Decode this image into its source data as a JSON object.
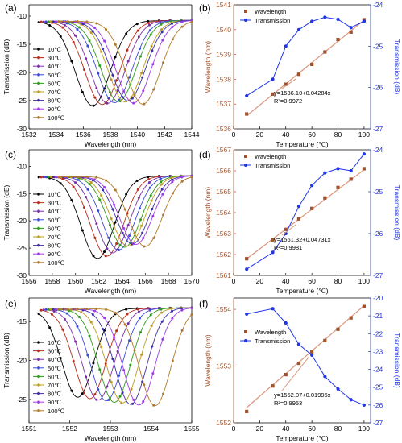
{
  "colors": {
    "wavelength": "#a0522d",
    "transmission": "#1f35e6",
    "fit": "#d9967c",
    "series": [
      "#000000",
      "#b82c1c",
      "#7a2fa6",
      "#3a49d8",
      "#2e9b1a",
      "#bb9b1f",
      "#3c2fa8",
      "#9b3be8",
      "#b07a2a"
    ]
  },
  "chart_data": [
    {
      "id": "a",
      "panel_label": "(a)",
      "type": "line",
      "xlabel": "Wavelength (nm)",
      "ylabel": "Transmission (dB)",
      "xlim": [
        1532,
        1544
      ],
      "ylim": [
        -30,
        -8
      ],
      "xticks": [
        1532,
        1534,
        1536,
        1538,
        1540,
        1542,
        1544
      ],
      "yticks": [
        -10,
        -15,
        -20,
        -25,
        -30
      ],
      "legend": [
        "10℃",
        "30℃",
        "40℃",
        "50℃",
        "60℃",
        "70℃",
        "80℃",
        "90℃",
        "100℃"
      ],
      "legend_pos": "left",
      "dips": [
        1536.7,
        1537.4,
        1537.8,
        1538.3,
        1538.6,
        1539.1,
        1539.3,
        1539.7,
        1540.4
      ],
      "dip_min": [
        -26,
        -25.8,
        -25.6,
        -25.5,
        -25.3,
        -25.4,
        -25.2,
        -25.6,
        -25.8
      ],
      "baseline": -11,
      "dip_width": 1.8
    },
    {
      "id": "b",
      "panel_label": "(b)",
      "type": "line-dual",
      "xlabel": "Temperature (℃)",
      "ylabel": "Wavelength (nm)",
      "y2label": "Transmission (dB)",
      "xlim": [
        0,
        105
      ],
      "ylim": [
        1536,
        1541
      ],
      "y2lim": [
        -27,
        -24
      ],
      "xticks": [
        0,
        20,
        40,
        60,
        80,
        100
      ],
      "yticks": [
        1536,
        1537,
        1538,
        1539,
        1540,
        1541
      ],
      "y2ticks": [
        -24,
        -25,
        -26,
        -27
      ],
      "series": [
        {
          "name": "Wavelength",
          "axis": "left",
          "x": [
            10,
            30,
            40,
            50,
            60,
            70,
            80,
            90,
            100
          ],
          "y": [
            1536.6,
            1537.4,
            1537.8,
            1538.2,
            1538.6,
            1539.1,
            1539.6,
            1539.9,
            1540.4
          ]
        },
        {
          "name": "Transmission",
          "axis": "right",
          "x": [
            10,
            30,
            40,
            50,
            60,
            70,
            80,
            90,
            100
          ],
          "y": [
            -26.2,
            -25.8,
            -25.0,
            -24.6,
            -24.4,
            -24.3,
            -24.35,
            -24.55,
            -24.4
          ]
        }
      ],
      "fit": {
        "intercept": 1536.1,
        "slope": 0.04284
      },
      "annotation": [
        "y=1536.10+0.04284x",
        "R²=0.9972"
      ],
      "legend_pos": "top-left"
    },
    {
      "id": "c",
      "panel_label": "(c)",
      "type": "line",
      "xlabel": "Wavelength (nm)",
      "ylabel": "Transmission (dB)",
      "xlim": [
        1556,
        1570
      ],
      "ylim": [
        -30,
        -7
      ],
      "xticks": [
        1556,
        1558,
        1560,
        1562,
        1564,
        1566,
        1568,
        1570
      ],
      "yticks": [
        -10,
        -15,
        -20,
        -25,
        -30
      ],
      "legend": [
        "10℃",
        "30℃",
        "40℃",
        "50℃",
        "60℃",
        "70℃",
        "80℃",
        "90℃",
        "100℃"
      ],
      "legend_pos": "left",
      "dips": [
        1561.9,
        1562.7,
        1563.2,
        1563.7,
        1564.2,
        1564.5,
        1564.9,
        1565.2,
        1566.0
      ],
      "dip_min": [
        -27,
        -26.6,
        -26.0,
        -25.5,
        -25.0,
        -24.8,
        -24.4,
        -24.5,
        -24.9
      ],
      "baseline": -12,
      "dip_width": 2.0
    },
    {
      "id": "d",
      "panel_label": "(d)",
      "type": "line-dual",
      "xlabel": "Temperature (℃)",
      "ylabel": "Wavelength (nm)",
      "y2label": "Transmission (dB)",
      "xlim": [
        0,
        105
      ],
      "ylim": [
        1561,
        1567
      ],
      "y2lim": [
        -27,
        -24
      ],
      "xticks": [
        0,
        20,
        40,
        60,
        80,
        100
      ],
      "yticks": [
        1561,
        1562,
        1563,
        1564,
        1565,
        1566,
        1567
      ],
      "y2ticks": [
        -24,
        -25,
        -26,
        -27
      ],
      "series": [
        {
          "name": "Wavelength",
          "axis": "left",
          "x": [
            10,
            30,
            40,
            50,
            60,
            70,
            80,
            90,
            100
          ],
          "y": [
            1561.8,
            1562.7,
            1563.2,
            1563.7,
            1564.2,
            1564.7,
            1565.2,
            1565.6,
            1566.1
          ]
        },
        {
          "name": "Transmission",
          "axis": "right",
          "x": [
            10,
            30,
            40,
            50,
            60,
            70,
            80,
            90,
            100
          ],
          "y": [
            -26.85,
            -26.45,
            -26.0,
            -25.35,
            -24.85,
            -24.55,
            -24.45,
            -24.5,
            -24.1
          ]
        }
      ],
      "fit": {
        "intercept": 1561.32,
        "slope": 0.04731
      },
      "annotation": [
        "y=1561.32+0.04731x",
        "R²=0.9981"
      ],
      "legend_pos": "top-left"
    },
    {
      "id": "e",
      "panel_label": "(e)",
      "type": "line",
      "xlabel": "Wavelength (nm)",
      "ylabel": "Transmission (dB)",
      "xlim": [
        1551,
        1555
      ],
      "ylim": [
        -28,
        -12
      ],
      "xticks": [
        1551,
        1552,
        1553,
        1554,
        1555
      ],
      "yticks": [
        -15,
        -20,
        -25
      ],
      "legend": [
        "10℃",
        "30℃",
        "40℃",
        "50℃",
        "60℃",
        "70℃",
        "80℃",
        "90℃",
        "100℃"
      ],
      "legend_pos": "left",
      "dips": [
        1552.2,
        1552.5,
        1552.7,
        1552.9,
        1553.1,
        1553.3,
        1553.5,
        1553.7,
        1554.1
      ],
      "dip_min": [
        -24.8,
        -25.0,
        -25.2,
        -25.3,
        -25.5,
        -25.6,
        -25.8,
        -25.9,
        -26.0
      ],
      "baseline": -13.5,
      "dip_width": 0.55
    },
    {
      "id": "f",
      "panel_label": "(f)",
      "type": "line-dual",
      "xlabel": "Temperature (℃)",
      "ylabel": "Wavelength (nm)",
      "y2label": "Transmission (dB)",
      "xlim": [
        0,
        105
      ],
      "ylim": [
        1552,
        1554.2
      ],
      "y2lim": [
        -27,
        -20
      ],
      "xticks": [
        0,
        20,
        40,
        60,
        80,
        100
      ],
      "yticks": [
        1552,
        1553,
        1554
      ],
      "y2ticks": [
        -20,
        -21,
        -22,
        -23,
        -24,
        -25,
        -26,
        -27
      ],
      "series": [
        {
          "name": "Wavelength",
          "axis": "left",
          "x": [
            10,
            30,
            40,
            50,
            60,
            70,
            80,
            90,
            100
          ],
          "y": [
            1552.2,
            1552.65,
            1552.85,
            1553.05,
            1553.25,
            1553.45,
            1553.65,
            1553.85,
            1554.05
          ]
        },
        {
          "name": "Transmission",
          "axis": "right",
          "x": [
            10,
            30,
            40,
            50,
            60,
            70,
            80,
            90,
            100
          ],
          "y": [
            -20.9,
            -20.6,
            -21.4,
            -22.6,
            -23.2,
            -24.4,
            -25.1,
            -25.7,
            -26.0
          ]
        }
      ],
      "fit": {
        "intercept": 1552.07,
        "slope": 0.01996
      },
      "annotation": [
        "y=1552.07+0.01996x",
        "R²=0.9953"
      ],
      "legend_pos": "center-left"
    }
  ]
}
